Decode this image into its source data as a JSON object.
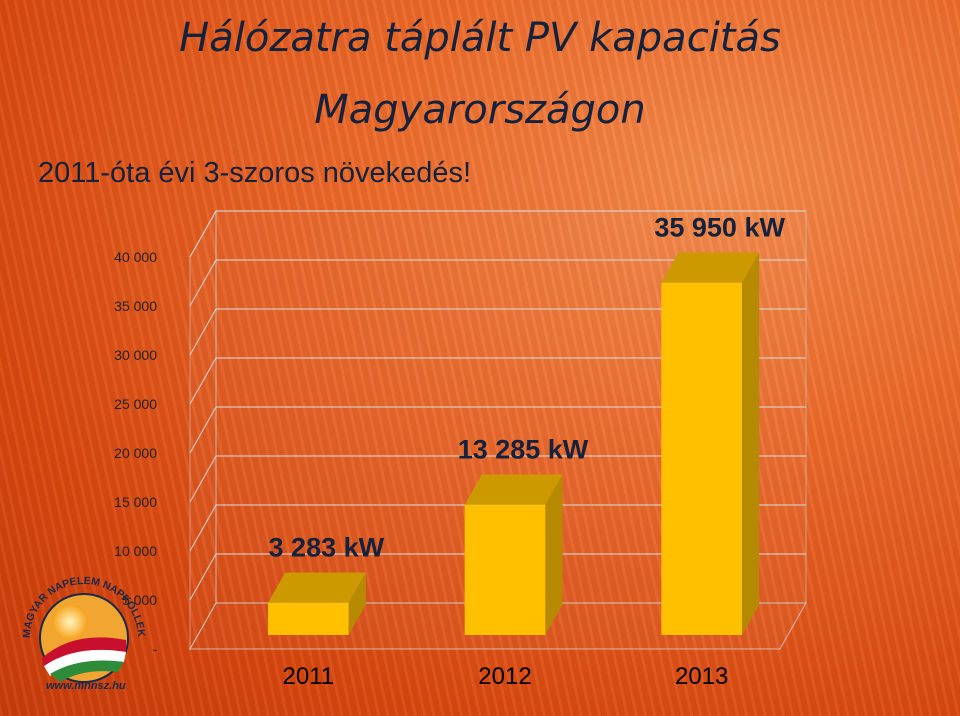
{
  "title_line1": "Hálózatra táplált PV kapacitás",
  "title_line2": "Magyarországon",
  "subtitle": "2011-óta évi 3-szoros növekedés!",
  "logo": {
    "text": "MAGYAR NAPELEM NAPKOLLEKTOR SZÖVETSÉG",
    "url": "www.mnnsz.hu",
    "icon": "sun-hills-logo-icon"
  },
  "colors": {
    "bar_front": "#ffc000",
    "bar_top": "#cc9a00",
    "bar_side": "#b58a00",
    "background": "#e8541a",
    "title": "#14223d"
  },
  "chart_data": {
    "type": "bar",
    "style": "3d",
    "categories": [
      "2011",
      "2012",
      "2013"
    ],
    "values": [
      3283,
      13285,
      35950
    ],
    "data_labels": [
      "3 283 kW",
      "13 285 kW",
      "35 950 kW"
    ],
    "yticks": [
      0,
      5000,
      10000,
      15000,
      20000,
      25000,
      30000,
      35000,
      40000
    ],
    "ytick_labels": [
      "-",
      "5 000",
      "10 000",
      "15 000",
      "20 000",
      "25 000",
      "30 000",
      "35 000",
      "40 000"
    ],
    "ylim": [
      0,
      40000
    ],
    "grid": true,
    "legend": false
  }
}
